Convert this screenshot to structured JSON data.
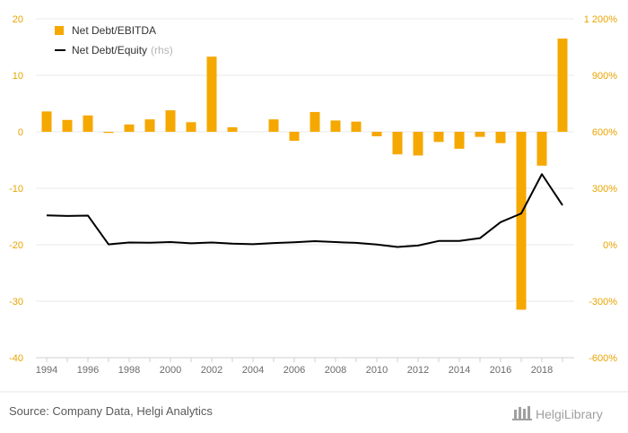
{
  "chart_data": {
    "type": "bar+line",
    "x": [
      1994,
      1995,
      1996,
      1997,
      1998,
      1999,
      2000,
      2001,
      2002,
      2003,
      2004,
      2005,
      2006,
      2007,
      2008,
      2009,
      2010,
      2011,
      2012,
      2013,
      2014,
      2015,
      2016,
      2017,
      2018,
      2019
    ],
    "x_tick_labels": [
      "1994",
      "1996",
      "1998",
      "2000",
      "2002",
      "2004",
      "2006",
      "2008",
      "2010",
      "2012",
      "2014",
      "2016",
      "2018"
    ],
    "series": [
      {
        "name": "Net Debt/EBITDA",
        "type": "bar",
        "axis": "left",
        "color": "#f5a800",
        "values": [
          3.6,
          2.1,
          2.9,
          -0.2,
          1.3,
          2.2,
          3.8,
          1.7,
          13.3,
          0.8,
          null,
          2.2,
          -1.6,
          3.5,
          2.0,
          1.8,
          -0.8,
          -4.0,
          -4.2,
          -1.8,
          -3.0,
          -0.9,
          -2.0,
          -31.5,
          -6.0,
          16.5
        ]
      },
      {
        "name": "Net Debt/Equity",
        "name_suffix": "(rhs)",
        "type": "line",
        "axis": "right",
        "color": "#000000",
        "values": [
          1.56,
          1.53,
          1.55,
          0.02,
          0.12,
          0.11,
          0.14,
          0.08,
          0.12,
          0.06,
          0.03,
          0.09,
          0.13,
          0.19,
          0.14,
          0.1,
          0.01,
          -0.12,
          -0.04,
          0.2,
          0.2,
          0.35,
          1.2,
          1.66,
          3.75,
          2.1
        ]
      }
    ],
    "left_axis": {
      "ylim": [
        -40,
        20
      ],
      "ticks": [
        20,
        10,
        0,
        -10,
        -20,
        -30,
        -40
      ],
      "tick_labels": [
        "20",
        "10",
        "0",
        "-10",
        "-20",
        "-30",
        "-40"
      ]
    },
    "right_axis": {
      "ylim": [
        -6,
        12
      ],
      "ticks": [
        12,
        9,
        6,
        3,
        0,
        -3,
        -6
      ],
      "tick_labels": [
        "1 200%",
        "900%",
        "600%",
        "300%",
        "0%",
        "-300%",
        "-600%"
      ]
    },
    "grid": true,
    "legend_position": "top-left",
    "accent_color": "#e9a400"
  },
  "footer": {
    "source": "Source: Company Data, Helgi Analytics",
    "logo_text": "HelgiLibrary"
  }
}
